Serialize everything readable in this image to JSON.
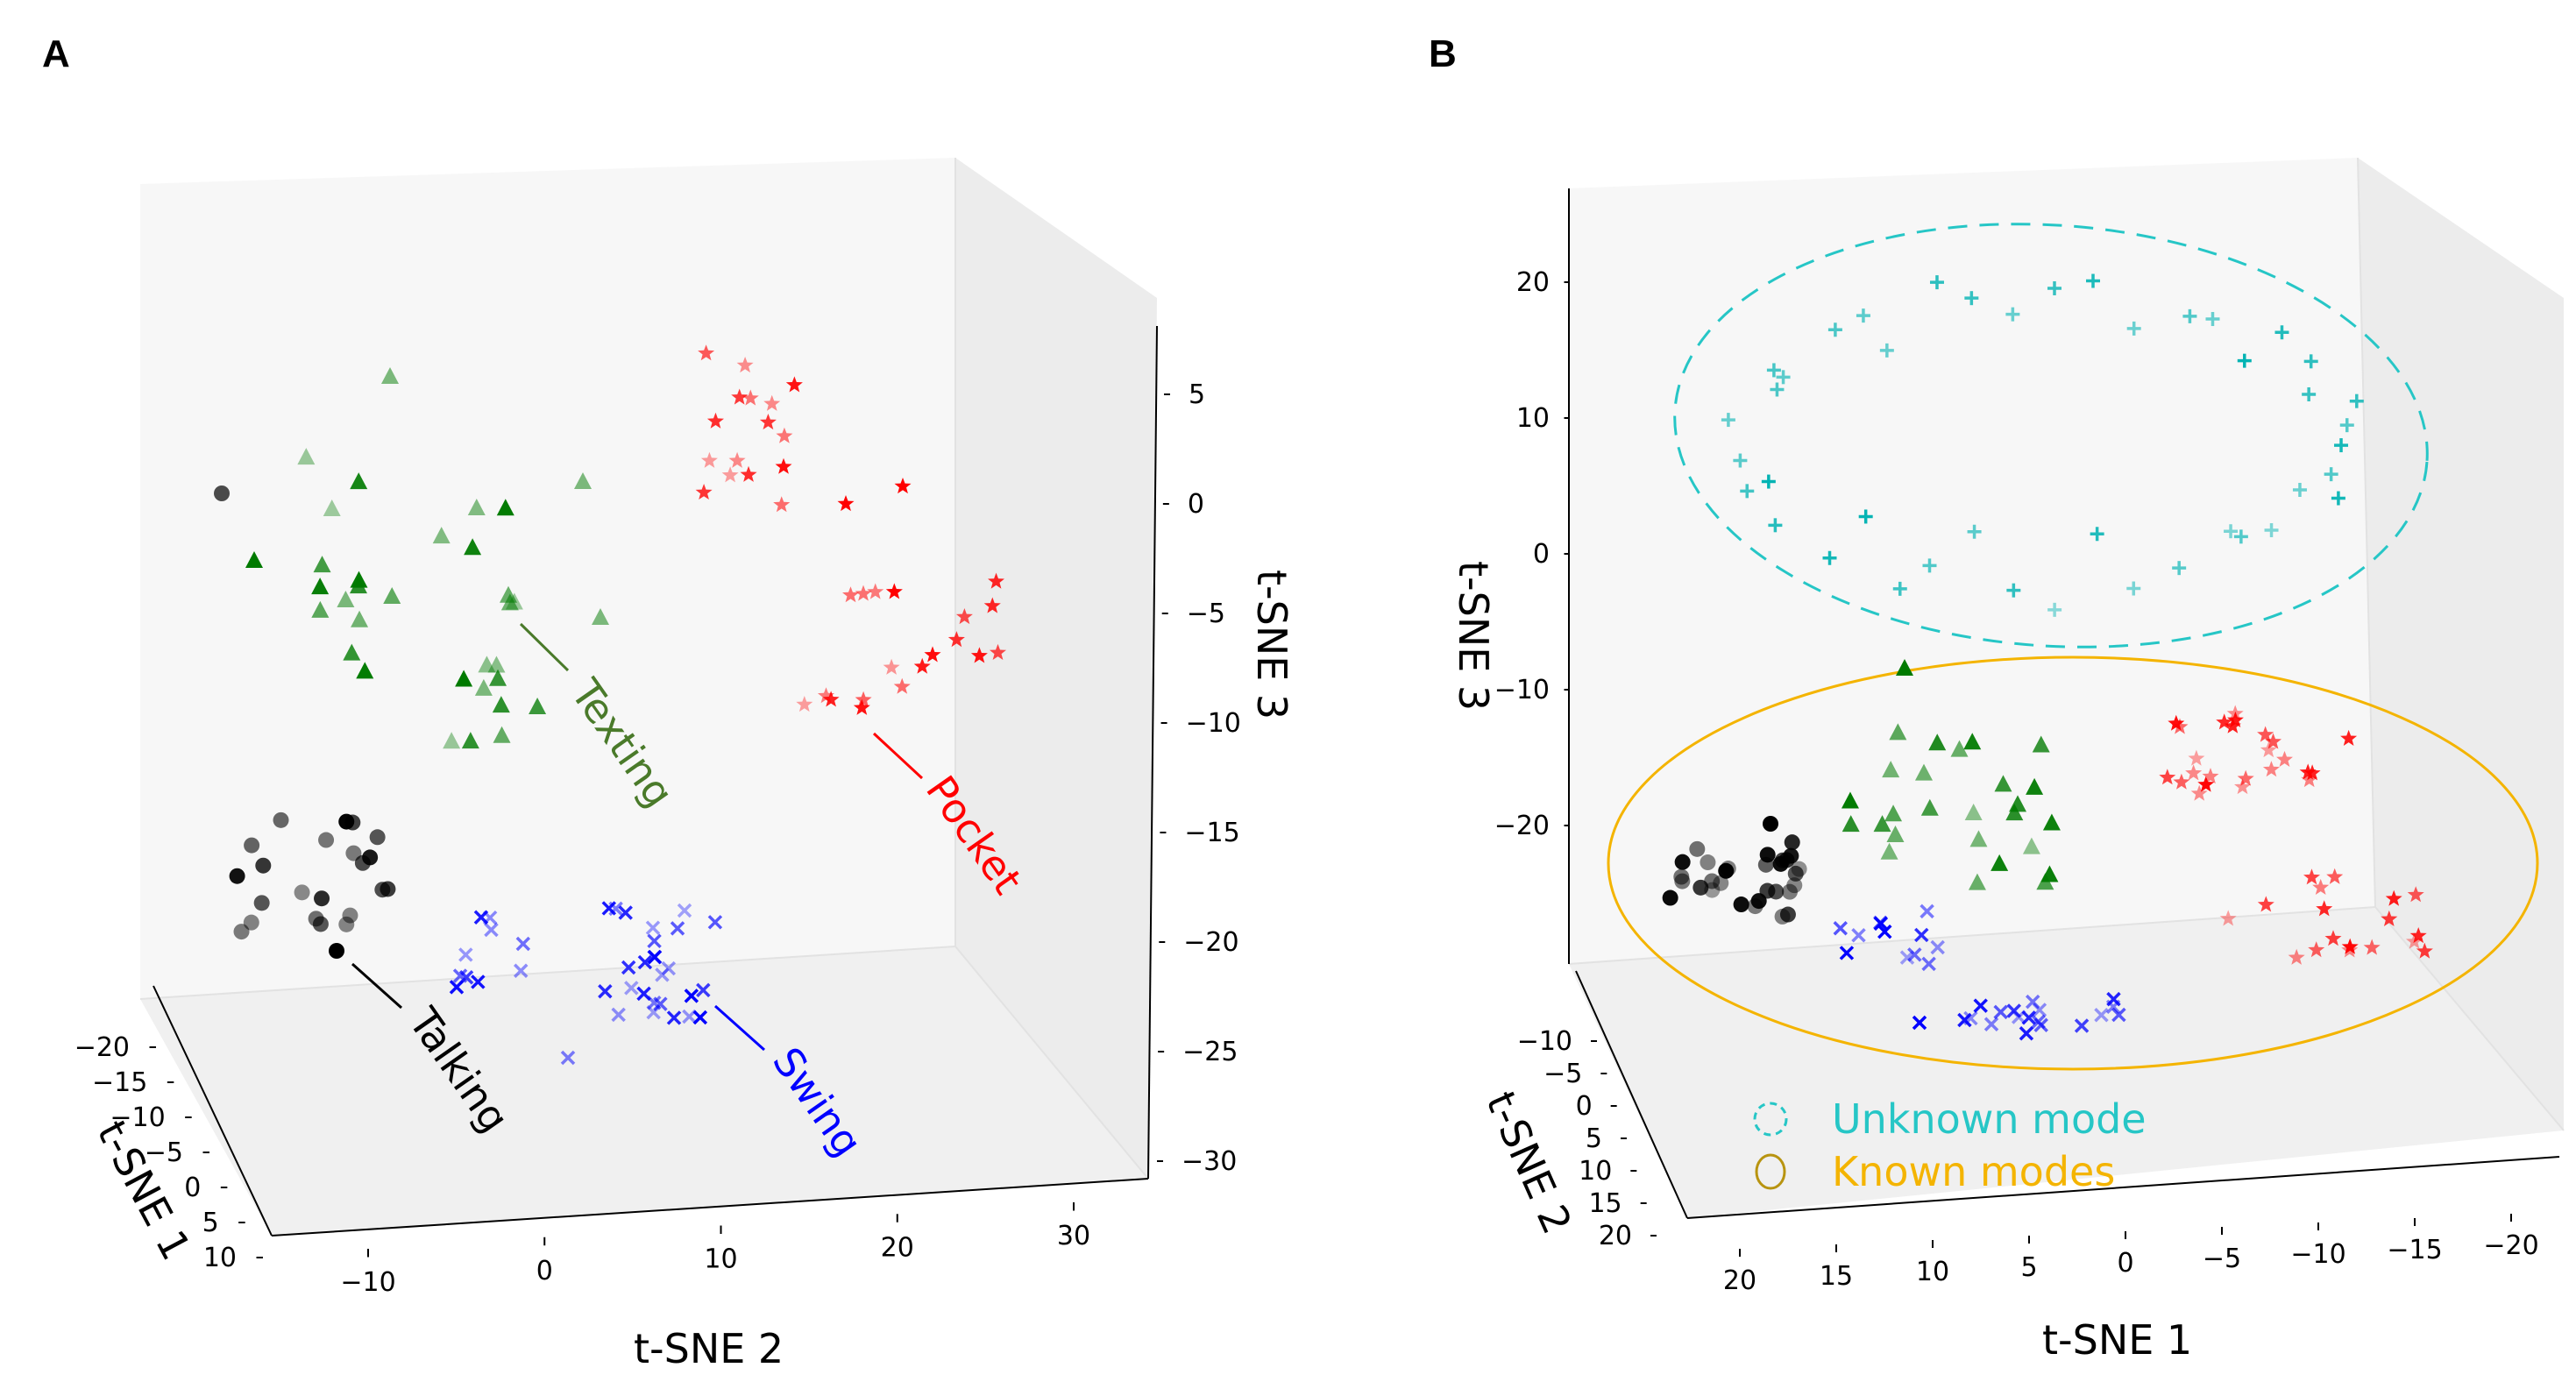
{
  "panels": {
    "A": {
      "letter": "A"
    },
    "B": {
      "letter": "B"
    }
  },
  "chart_data": [
    {
      "type": "scatter",
      "panel": "A",
      "projection": "3d",
      "title": "",
      "xlabel": "t-SNE 1",
      "ylabel": "t-SNE 2",
      "zlabel": "t-SNE 3",
      "x_ticks": [
        "−20",
        "−15",
        "−10",
        "−5",
        "0",
        "5",
        "10"
      ],
      "y_ticks": [
        "−10",
        "0",
        "10",
        "20",
        "30"
      ],
      "z_ticks": [
        "5",
        "0",
        "−5",
        "−10",
        "−15",
        "−20",
        "−25",
        "−30"
      ],
      "colors": {
        "Texting": "#007a00",
        "Pocket": "#ff0000",
        "Talking": "#000000",
        "Swing": "#0000ff",
        "label_texting": "#4a7a2a"
      },
      "series": [
        {
          "name": "Texting",
          "marker": "triangle",
          "color": "#007a00"
        },
        {
          "name": "Pocket",
          "marker": "star",
          "color": "#ff0000"
        },
        {
          "name": "Talking",
          "marker": "circle",
          "color": "#000000"
        },
        {
          "name": "Swing",
          "marker": "x",
          "color": "#0000ff"
        }
      ],
      "annotations": [
        "Texting",
        "Pocket",
        "Talking",
        "Swing"
      ]
    },
    {
      "type": "scatter",
      "panel": "B",
      "projection": "3d",
      "title": "",
      "xlabel": "t-SNE 1",
      "ylabel": "t-SNE 2",
      "zlabel": "t-SNE 3",
      "x_ticks": [
        "20",
        "15",
        "10",
        "5",
        "0",
        "−5",
        "−10",
        "−15",
        "−20"
      ],
      "y_ticks": [
        "−10",
        "−5",
        "0",
        "5",
        "10",
        "15",
        "20"
      ],
      "z_ticks": [
        "20",
        "10",
        "0",
        "−10",
        "−20"
      ],
      "colors": {
        "unknown": "#00b3b3",
        "known": "#f4b400"
      },
      "series": [
        {
          "name": "Unknown",
          "marker": "plus",
          "color": "#00b3b3"
        },
        {
          "name": "Texting",
          "marker": "triangle",
          "color": "#007a00"
        },
        {
          "name": "Pocket",
          "marker": "star",
          "color": "#ff0000"
        },
        {
          "name": "Talking",
          "marker": "circle",
          "color": "#000000"
        },
        {
          "name": "Swing",
          "marker": "x",
          "color": "#0000ff"
        }
      ],
      "legend": [
        {
          "label": "Unknown mode",
          "style": "dashed-circle",
          "color": "#26c6c6"
        },
        {
          "label": "Known modes",
          "style": "solid-circle",
          "color": "#f4b400"
        }
      ]
    }
  ]
}
